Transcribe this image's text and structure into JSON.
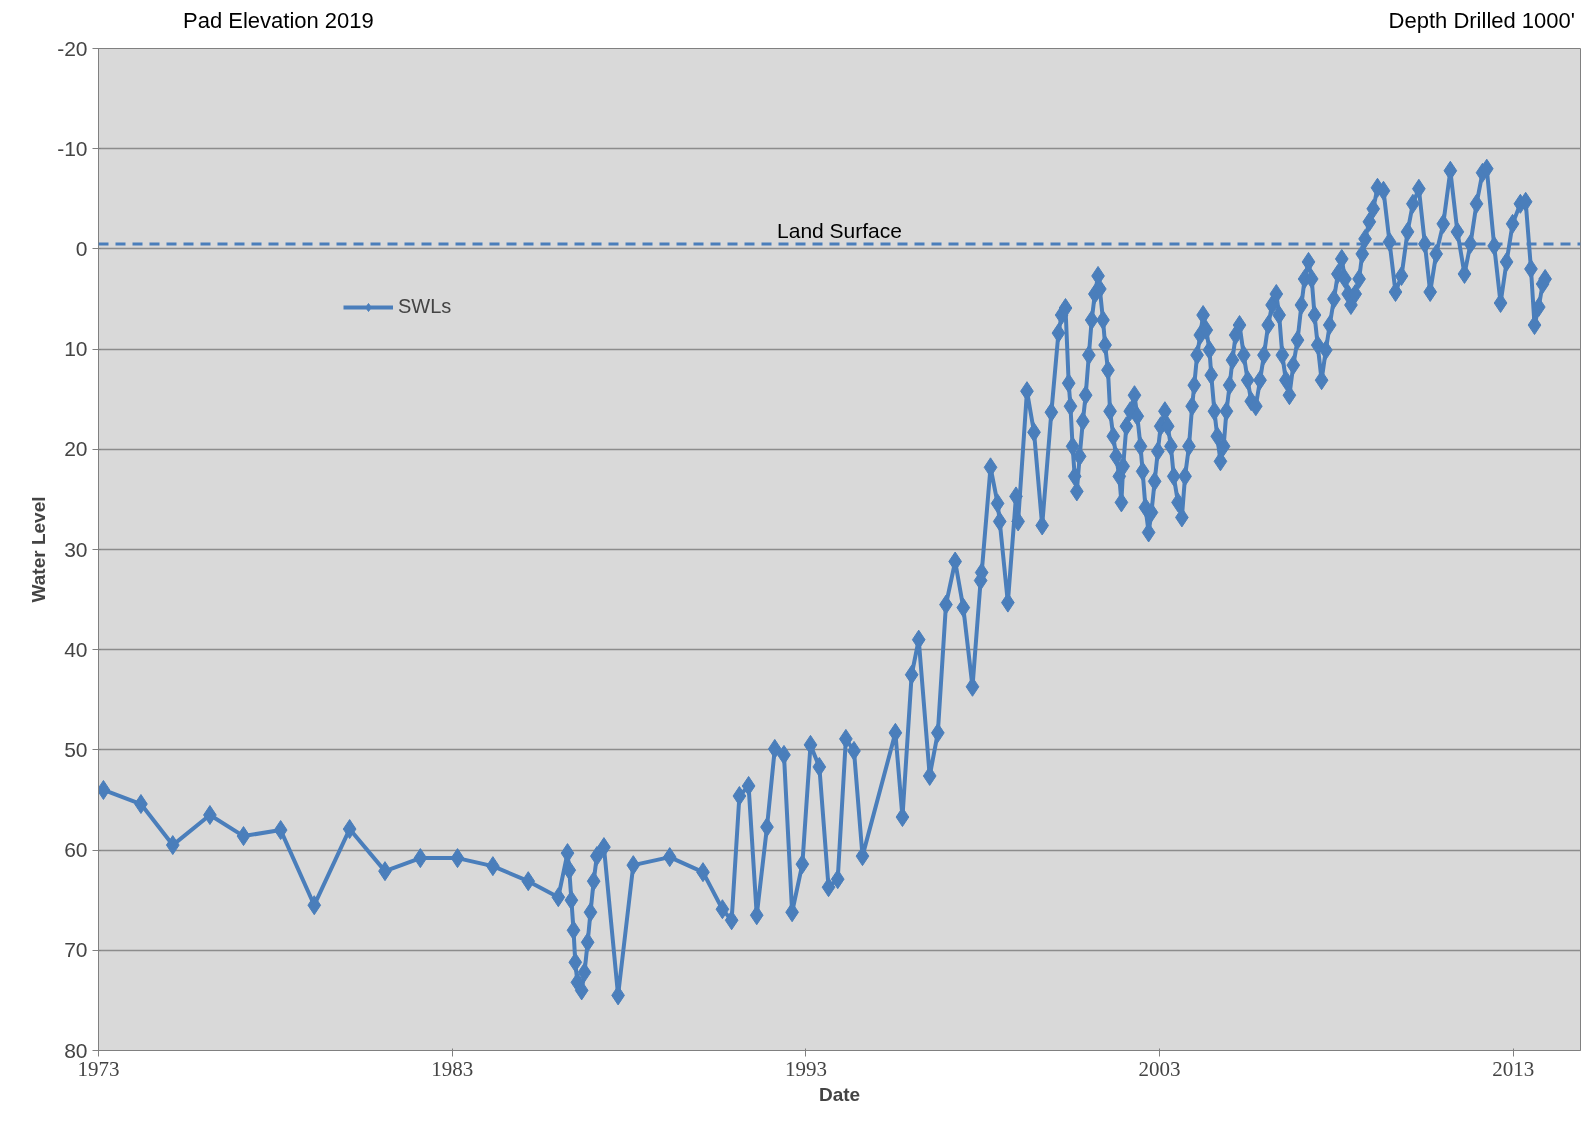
{
  "chart_data": {
    "type": "line",
    "xlabel": "Date",
    "ylabel": "Water Level",
    "annotations": [
      "Pad Elevation 2019",
      "Depth Drilled 1000'"
    ],
    "xlim": [
      1973,
      2014.9
    ],
    "xticks": [
      1973,
      1983,
      1993,
      2003,
      2013
    ],
    "ylim": [
      80,
      -20
    ],
    "yticks": [
      -20,
      -10,
      0,
      10,
      20,
      30,
      40,
      50,
      60,
      70,
      80
    ],
    "grid": "y",
    "legend": "top left",
    "marker": "diamond",
    "line_style": "solid",
    "ref_lines": [
      {
        "axis": "y",
        "value": -0.5,
        "label": "Land Surface",
        "color": "#4a7ebb",
        "line_style": "dashed"
      }
    ],
    "series": [
      {
        "name": "SWLs",
        "color": "#4a7ebb",
        "x": [
          1973.14,
          1974.2,
          1975.1,
          1976.15,
          1977.1,
          1978.15,
          1979.1,
          1980.1,
          1981.1,
          1982.1,
          1983.15,
          1984.15,
          1985.15,
          1986.0,
          1986.26,
          1986.31,
          1986.37,
          1986.43,
          1986.48,
          1986.54,
          1986.66,
          1986.74,
          1986.83,
          1986.91,
          1987.0,
          1987.09,
          1987.29,
          1987.69,
          1988.12,
          1989.15,
          1990.09,
          1990.64,
          1990.9,
          1991.12,
          1991.38,
          1991.61,
          1991.9,
          1992.12,
          1992.38,
          1992.61,
          1992.9,
          1993.13,
          1993.38,
          1993.64,
          1993.9,
          1994.13,
          1994.36,
          1994.6,
          1995.53,
          1995.73,
          1995.99,
          1996.19,
          1996.5,
          1996.73,
          1996.96,
          1997.22,
          1997.45,
          1997.71,
          1997.94,
          1997.97,
          1998.22,
          1998.42,
          1998.48,
          1998.71,
          1998.94,
          1999.0,
          1999.25,
          1999.45,
          1999.68,
          1999.94,
          2000.14,
          2000.23,
          2000.34,
          2000.43,
          2000.48,
          2000.54,
          2000.6,
          2000.66,
          2000.74,
          2000.83,
          2000.91,
          2001.0,
          2001.08,
          2001.17,
          2001.26,
          2001.31,
          2001.4,
          2001.46,
          2001.54,
          2001.6,
          2001.69,
          2001.77,
          2001.86,
          2001.92,
          2001.97,
          2002.06,
          2002.17,
          2002.29,
          2002.37,
          2002.46,
          2002.52,
          2002.6,
          2002.69,
          2002.77,
          2002.86,
          2002.95,
          2003.03,
          2003.15,
          2003.23,
          2003.32,
          2003.4,
          2003.52,
          2003.63,
          2003.72,
          2003.83,
          2003.92,
          2003.98,
          2004.06,
          2004.15,
          2004.23,
          2004.32,
          2004.41,
          2004.46,
          2004.55,
          2004.63,
          2004.72,
          2004.81,
          2004.89,
          2004.98,
          2005.06,
          2005.15,
          2005.26,
          2005.38,
          2005.49,
          2005.59,
          2005.72,
          2005.84,
          2005.95,
          2006.07,
          2006.18,
          2006.3,
          2006.38,
          2006.47,
          2006.57,
          2006.67,
          2006.78,
          2006.9,
          2007.01,
          2007.1,
          2007.21,
          2007.3,
          2007.38,
          2007.47,
          2007.58,
          2007.7,
          2007.81,
          2007.93,
          2008.04,
          2008.15,
          2008.24,
          2008.33,
          2008.41,
          2008.53,
          2008.64,
          2008.73,
          2008.81,
          2008.93,
          2009.04,
          2009.16,
          2009.33,
          2009.5,
          2009.67,
          2009.84,
          2010.01,
          2010.16,
          2010.33,
          2010.5,
          2010.65,
          2010.82,
          2011.02,
          2011.22,
          2011.42,
          2011.62,
          2011.79,
          2011.96,
          2012.13,
          2012.25,
          2012.46,
          2012.64,
          2012.81,
          2012.98,
          2013.2,
          2013.35,
          2013.5,
          2013.6,
          2013.72,
          2013.83,
          2013.9
        ],
        "values": [
          54.0,
          55.4,
          59.5,
          56.5,
          58.6,
          58.0,
          65.5,
          57.9,
          62.1,
          60.8,
          60.8,
          61.6,
          63.1,
          64.7,
          60.3,
          62,
          65,
          68,
          71.2,
          73.2,
          74.0,
          72.2,
          69.2,
          66.2,
          63.1,
          60.6,
          59.7,
          74.5,
          61.5,
          60.7,
          62.2,
          65.9,
          67.0,
          54.6,
          53.6,
          66.5,
          57.7,
          49.9,
          50.5,
          66.2,
          61.4,
          49.5,
          51.7,
          63.7,
          62.9,
          48.9,
          50.1,
          60.6,
          48.3,
          56.7,
          42.5,
          39.0,
          52.6,
          48.3,
          35.5,
          31.2,
          35.8,
          43.7,
          33.1,
          32.3,
          21.8,
          25.4,
          27.2,
          35.3,
          24.7,
          27.2,
          14.2,
          18.3,
          27.6,
          16.3,
          8.4,
          6.6,
          5.9,
          13.4,
          15.7,
          19.7,
          22.7,
          24.2,
          20.7,
          17.2,
          14.6,
          10.6,
          7.1,
          4.5,
          2.7,
          4.0,
          7.1,
          9.6,
          12.1,
          16.2,
          18.7,
          20.7,
          22.7,
          25.3,
          21.7,
          17.7,
          16.2,
          14.6,
          16.7,
          19.7,
          22.2,
          25.8,
          28.3,
          26.3,
          23.2,
          20.2,
          17.7,
          16.2,
          17.7,
          19.7,
          22.7,
          25.3,
          26.8,
          22.7,
          19.7,
          15.7,
          13.6,
          10.6,
          8.6,
          6.6,
          8.1,
          10.1,
          12.6,
          16.2,
          18.7,
          21.2,
          19.7,
          16.2,
          13.6,
          11.1,
          8.6,
          7.6,
          10.6,
          13.1,
          15.2,
          15.7,
          13.1,
          10.6,
          7.6,
          5.6,
          4.5,
          6.6,
          10.6,
          13.1,
          14.6,
          11.6,
          9.1,
          5.6,
          3.0,
          1.3,
          3.0,
          6.6,
          9.6,
          13.1,
          10.1,
          7.6,
          5.0,
          2.5,
          1.0,
          3.0,
          4.5,
          5.6,
          4.5,
          3.0,
          0.5,
          -1.0,
          -2.7,
          -4.0,
          -6.1,
          -5.8,
          -0.7,
          4.3,
          2.7,
          -1.7,
          -4.5,
          -6.0,
          -0.5,
          4.3,
          0.5,
          -2.5,
          -7.8,
          -1.7,
          2.5,
          -0.5,
          -4.5,
          -7.6,
          -8.0,
          -0.3,
          5.4,
          1.3,
          -2.5,
          -4.5,
          -4.7,
          2.0,
          7.6,
          5.8,
          3.5,
          3.0
        ]
      }
    ]
  }
}
